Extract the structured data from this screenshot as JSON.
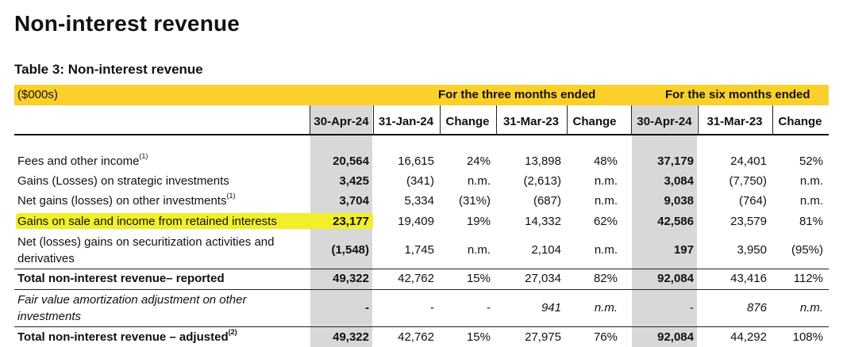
{
  "page_title": "Non-interest revenue",
  "table": {
    "title": "Table 3: Non-interest revenue",
    "unit_label": "($000s)",
    "group_three_months": "For the three months ended",
    "group_six_months": "For the six months ended",
    "columns": [
      "30-Apr-24",
      "31-Jan-24",
      "Change",
      "31-Mar-23",
      "Change",
      "30-Apr-24",
      "31-Mar-23",
      "Change"
    ],
    "rows": [
      {
        "label": "Fees and other income",
        "note": "(1)",
        "values": [
          "20,564",
          "16,615",
          "24%",
          "13,898",
          "48%",
          "37,179",
          "24,401",
          "52%"
        ]
      },
      {
        "label": "Gains (Losses) on strategic investments",
        "note": "",
        "values": [
          "3,425",
          "(341)",
          "n.m.",
          "(2,613)",
          "n.m.",
          "3,084",
          "(7,750)",
          "n.m."
        ]
      },
      {
        "label": "Net gains (losses) on other investments",
        "note": "(1)",
        "values": [
          "3,704",
          "5,334",
          "(31%)",
          "(687)",
          "n.m.",
          "9,038",
          "(764)",
          "n.m."
        ]
      },
      {
        "label": "Gains on sale and income from retained interests",
        "note": "",
        "values": [
          "23,177",
          "19,409",
          "19%",
          "14,332",
          "62%",
          "42,586",
          "23,579",
          "81%"
        ]
      },
      {
        "label_line1": "Net (losses) gains on securitization activities and",
        "label_line2": "derivatives",
        "values": [
          "(1,548)",
          "1,745",
          "n.m.",
          "2,104",
          "n.m.",
          "197",
          "3,950",
          "(95%)"
        ]
      },
      {
        "label": "Total non-interest revenue– reported",
        "values": [
          "49,322",
          "42,762",
          "15%",
          "27,034",
          "82%",
          "92,084",
          "43,416",
          "112%"
        ]
      },
      {
        "label_line1": "Fair value amortization adjustment on other",
        "label_line2": "investments",
        "values": [
          "-",
          "-",
          "-",
          "941",
          "n.m.",
          "-",
          "876",
          "n.m."
        ]
      },
      {
        "label": "Total non-interest revenue – adjusted",
        "note": "(2)",
        "values": [
          "49,322",
          "42,762",
          "15%",
          "27,975",
          "76%",
          "92,084",
          "44,292",
          "108%"
        ]
      }
    ]
  }
}
